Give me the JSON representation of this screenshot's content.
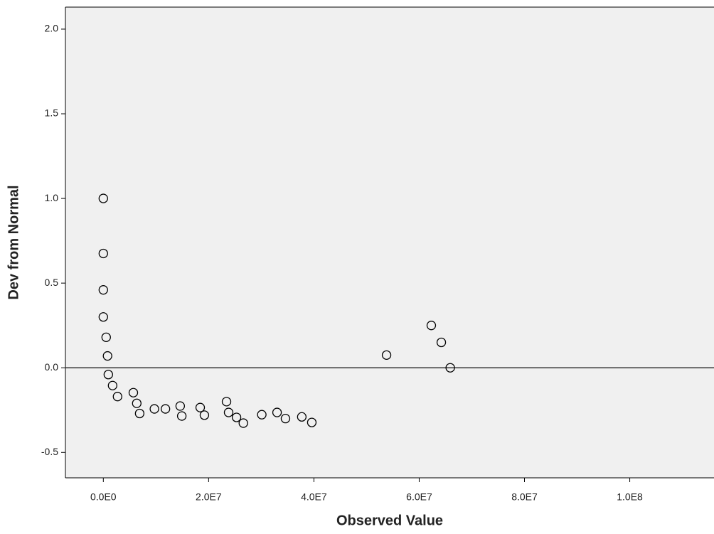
{
  "chart_data": {
    "type": "scatter",
    "x_label": "Observed Value",
    "y_label": "Dev from Normal",
    "xlim": [
      -7200000,
      116000000
    ],
    "ylim": [
      -0.65,
      2.13
    ],
    "xticks": [
      {
        "value": 0,
        "label": "0.0E0"
      },
      {
        "value": 20000000,
        "label": "2.0E7"
      },
      {
        "value": 40000000,
        "label": "4.0E7"
      },
      {
        "value": 60000000,
        "label": "6.0E7"
      },
      {
        "value": 80000000,
        "label": "8.0E7"
      },
      {
        "value": 100000000,
        "label": "1.0E8"
      }
    ],
    "yticks": [
      -0.5,
      {
        "value": 0,
        "label": "0.0"
      },
      0.5,
      {
        "value": 1,
        "label": "1.0"
      },
      1.5,
      {
        "value": 2,
        "label": "2.0"
      }
    ],
    "reference_line": 0,
    "color": "#000000",
    "x": [
      0,
      0,
      0,
      0,
      540000,
      800000,
      950000,
      1760000,
      2700000,
      5700000,
      6350000,
      6900000,
      9700000,
      11800000,
      14600000,
      14900000,
      18400000,
      19200000,
      23400000,
      23800000,
      25300000,
      26600000,
      30100000,
      33000000,
      34600000,
      37700000,
      39600000,
      53800000,
      62300000,
      64200000,
      65900000
    ],
    "values": [
      1.0,
      0.675,
      0.46,
      0.3,
      0.18,
      0.07,
      -0.04,
      -0.105,
      -0.17,
      -0.147,
      -0.21,
      -0.27,
      -0.243,
      -0.243,
      -0.226,
      -0.285,
      -0.235,
      -0.28,
      -0.2,
      -0.264,
      -0.293,
      -0.327,
      -0.277,
      -0.264,
      -0.3,
      -0.29,
      -0.323,
      0.075,
      0.25,
      0.15,
      0.0
    ]
  }
}
